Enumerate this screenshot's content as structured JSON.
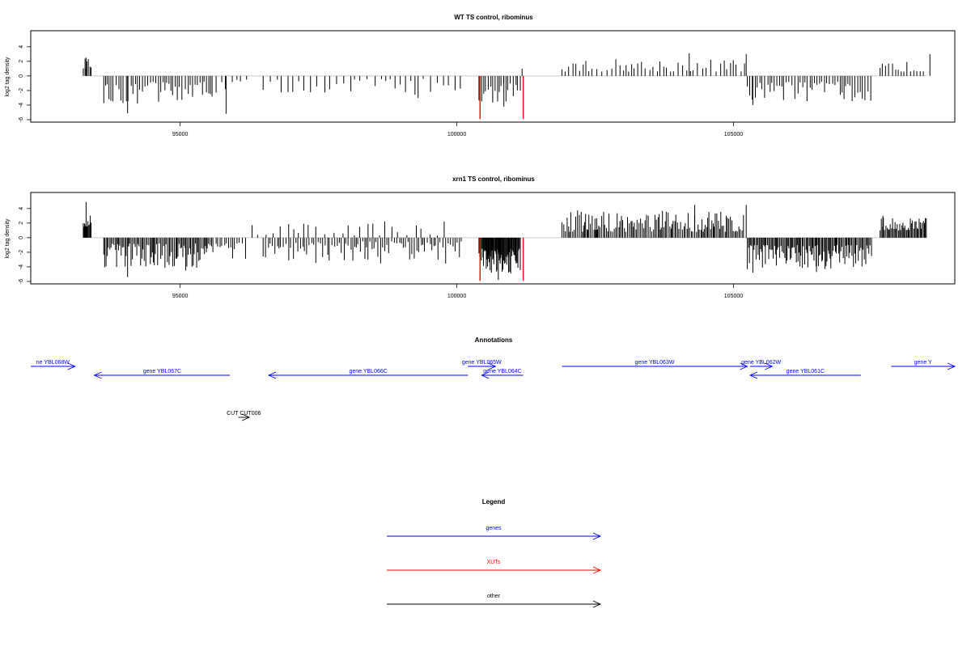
{
  "colors": {
    "bar": "#000000",
    "xut": "#ff0000",
    "gene": "#0000ff",
    "other": "#000000",
    "baseline": "#bbbbbb"
  },
  "chart_data": [
    {
      "type": "bar",
      "title": "WT TS control, ribominus",
      "ylabel": "log2 tag density",
      "xlim": [
        92300,
        109000
      ],
      "ylim": [
        -6,
        5.2
      ],
      "xticks": [
        95000,
        100000,
        105000
      ],
      "xtick_labels": [
        "95000",
        "100000",
        "105000"
      ],
      "yticks": [
        -6,
        -4,
        -2,
        0,
        2,
        4
      ],
      "ytick_labels": [
        "-6",
        "-4",
        "-2",
        "0",
        "2",
        "4"
      ],
      "grid": false,
      "segments": [
        {
          "from": 93250,
          "to": 93400,
          "sign": 1,
          "min": 1.0,
          "max": 2.5,
          "step": 25
        },
        {
          "from": 93620,
          "to": 95600,
          "sign": -1,
          "min": 0.8,
          "max": 3.8,
          "step": 45
        },
        {
          "from": 95650,
          "to": 96200,
          "sign": -1,
          "min": 0.5,
          "max": 2.5,
          "step": 90
        },
        {
          "from": 96500,
          "to": 100100,
          "sign": -1,
          "min": 0.4,
          "max": 2.6,
          "step": 110
        },
        {
          "from": 100400,
          "to": 101150,
          "sign": -1,
          "min": 1.0,
          "max": 4.0,
          "step": 40
        },
        {
          "from": 101900,
          "to": 105200,
          "sign": 1,
          "min": 0.6,
          "max": 2.4,
          "step": 70
        },
        {
          "from": 105250,
          "to": 107500,
          "sign": -1,
          "min": 0.8,
          "max": 3.5,
          "step": 45
        },
        {
          "from": 107650,
          "to": 108500,
          "sign": 1,
          "min": 0.6,
          "max": 2.0,
          "step": 60
        }
      ],
      "peaks": [
        {
          "x": 93300,
          "y": 2.5
        },
        {
          "x": 94050,
          "y": -5.1
        },
        {
          "x": 95830,
          "y": -5.2
        },
        {
          "x": 99300,
          "y": -3.0
        },
        {
          "x": 100850,
          "y": -4.2
        },
        {
          "x": 101180,
          "y": 1.0
        },
        {
          "x": 104200,
          "y": 3.1
        },
        {
          "x": 105230,
          "y": 3.0
        },
        {
          "x": 105350,
          "y": -4.0
        },
        {
          "x": 108550,
          "y": 3.0
        }
      ],
      "xut_marks": [
        {
          "x": 100420,
          "y": -5.9
        },
        {
          "x": 101200,
          "y": -5.9
        }
      ]
    },
    {
      "type": "bar",
      "title": "xrn1 TS control, ribominus",
      "ylabel": "log2 tag density",
      "xlim": [
        92300,
        109000
      ],
      "ylim": [
        -6,
        5.2
      ],
      "xticks": [
        95000,
        100000,
        105000
      ],
      "xtick_labels": [
        "95000",
        "100000",
        "105000"
      ],
      "yticks": [
        -6,
        -4,
        -2,
        0,
        2,
        4
      ],
      "ytick_labels": [
        "-6",
        "-4",
        "-2",
        "0",
        "2",
        "4"
      ],
      "grid": false,
      "segments": [
        {
          "from": 93250,
          "to": 93400,
          "sign": 1,
          "min": 1.5,
          "max": 3.5,
          "step": 12
        },
        {
          "from": 93620,
          "to": 95600,
          "sign": -1,
          "min": 0.8,
          "max": 4.2,
          "step": 22
        },
        {
          "from": 95650,
          "to": 96200,
          "sign": -1,
          "min": 0.6,
          "max": 3.0,
          "step": 45
        },
        {
          "from": 96300,
          "to": 99800,
          "sign": 1,
          "min": 0.3,
          "max": 2.5,
          "step": 130
        },
        {
          "from": 96500,
          "to": 100100,
          "sign": -1,
          "min": 0.5,
          "max": 3.6,
          "step": 40
        },
        {
          "from": 100400,
          "to": 101150,
          "sign": -1,
          "min": 1.5,
          "max": 5.0,
          "step": 12
        },
        {
          "from": 101900,
          "to": 105200,
          "sign": 1,
          "min": 0.8,
          "max": 3.8,
          "step": 25
        },
        {
          "from": 105250,
          "to": 107500,
          "sign": -1,
          "min": 1.0,
          "max": 4.3,
          "step": 20
        },
        {
          "from": 107650,
          "to": 108500,
          "sign": 1,
          "min": 1.0,
          "max": 2.8,
          "step": 20
        }
      ],
      "peaks": [
        {
          "x": 93300,
          "y": 4.9
        },
        {
          "x": 94050,
          "y": -5.4
        },
        {
          "x": 95100,
          "y": -4.5
        },
        {
          "x": 100750,
          "y": -5.8
        },
        {
          "x": 104300,
          "y": 4.5
        },
        {
          "x": 105230,
          "y": 4.5
        },
        {
          "x": 105350,
          "y": -4.8
        },
        {
          "x": 106500,
          "y": -4.7
        },
        {
          "x": 107700,
          "y": 3.0
        }
      ],
      "xut_marks": [
        {
          "x": 100420,
          "y": -5.9
        },
        {
          "x": 101200,
          "y": -5.9
        }
      ]
    }
  ],
  "annotations": {
    "title": "Annotations",
    "genes": [
      {
        "label": "ne YBL068W",
        "x1": 92300,
        "x2": 93100,
        "dir": "right",
        "row": 0
      },
      {
        "label": "gene YBL067C",
        "x1": 93450,
        "x2": 95900,
        "dir": "left",
        "row": 1
      },
      {
        "label": "gene YBL066C",
        "x1": 96600,
        "x2": 100200,
        "dir": "left",
        "row": 1
      },
      {
        "label": "gene YBL065W",
        "x1": 100200,
        "x2": 100700,
        "dir": "right",
        "row": 0
      },
      {
        "label": "gene YBL064C",
        "x1": 100450,
        "x2": 101200,
        "dir": "left",
        "row": 1
      },
      {
        "label": "gene YBL063W",
        "x1": 101900,
        "x2": 105250,
        "dir": "right",
        "row": 0
      },
      {
        "label": "gene YBL062W",
        "x1": 105300,
        "x2": 105700,
        "dir": "right",
        "row": 0
      },
      {
        "label": "gene YBL061C",
        "x1": 105300,
        "x2": 107300,
        "dir": "left",
        "row": 1
      },
      {
        "label": "gene Y",
        "x1": 107850,
        "x2": 109000,
        "dir": "right",
        "row": 0
      }
    ],
    "other": [
      {
        "label": "CUT CUT006",
        "x1": 96050,
        "x2": 96250,
        "dir": "right"
      }
    ]
  },
  "legend": {
    "title": "Legend",
    "items": [
      {
        "label": "genes",
        "color": "#0000ff"
      },
      {
        "label": "XUTs",
        "color": "#ff0000"
      },
      {
        "label": "other",
        "color": "#000000"
      }
    ]
  }
}
